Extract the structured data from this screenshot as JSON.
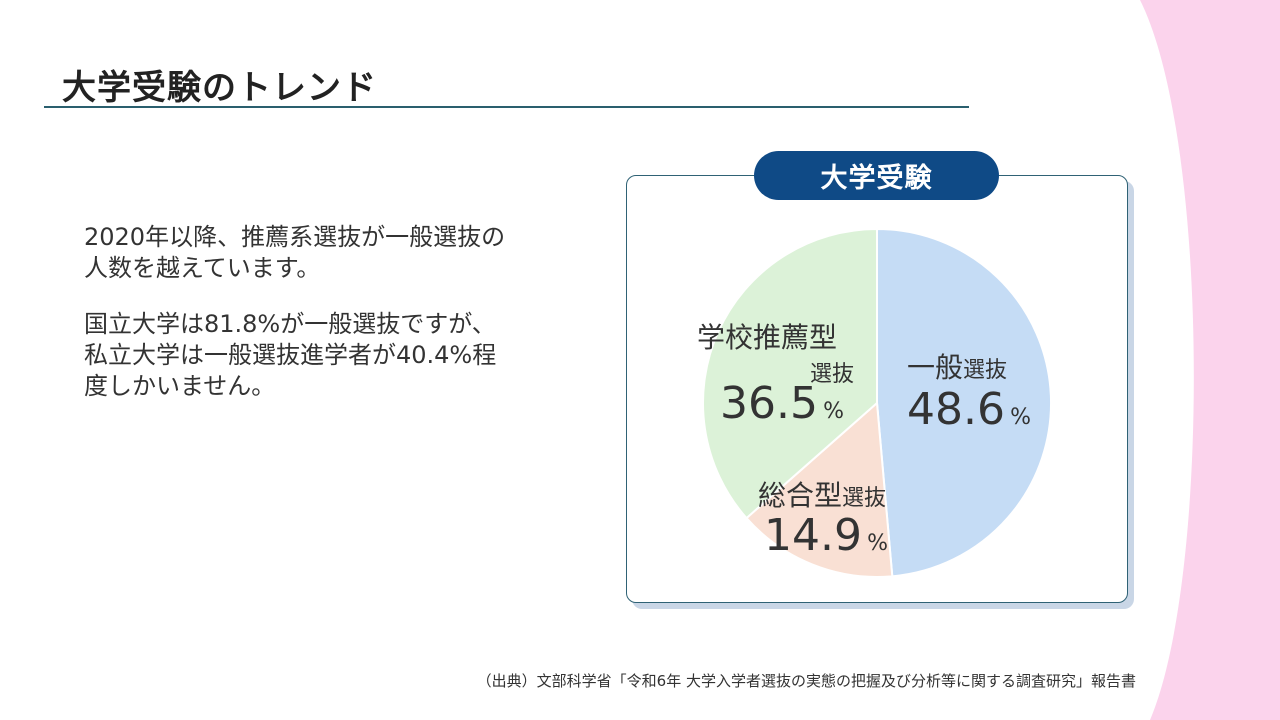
{
  "slide": {
    "title": "大学受験のトレンド",
    "paragraph1_line1": "2020年以降、推薦系選抜が一般選抜の",
    "paragraph1_line2": "人数を越えています。",
    "paragraph2_line1": "国立大学は81.8%が一般選抜ですが、",
    "paragraph2_line2": "私立大学は一般選抜進学者が40.4%程",
    "paragraph2_line3": "度しかいません。",
    "source": "（出典）文部科学省「令和6年 大学入学者選抜の実態の把握及び分析等に関する調査研究」報告書"
  },
  "colors": {
    "title_rule": "#2a5f6e",
    "pill_bg": "#0f4a86",
    "pink_band": "#fbd3ec"
  },
  "chart_data": {
    "type": "pie",
    "title": "大学受験",
    "start_angle_deg": 0,
    "direction": "clockwise",
    "slices": [
      {
        "name": "一般",
        "name_suffix": "選抜",
        "value": 48.6,
        "value_text": "48.6",
        "unit": "%",
        "color": "#c5dcf5"
      },
      {
        "name": "総合型",
        "name_suffix": "選抜",
        "value": 14.9,
        "value_text": "14.9",
        "unit": "%",
        "color": "#f9e0d4"
      },
      {
        "name": "学校推薦型",
        "name_suffix": "選抜",
        "value": 36.5,
        "value_text": "36.5",
        "unit": "%",
        "color": "#dcf2d8"
      }
    ]
  }
}
